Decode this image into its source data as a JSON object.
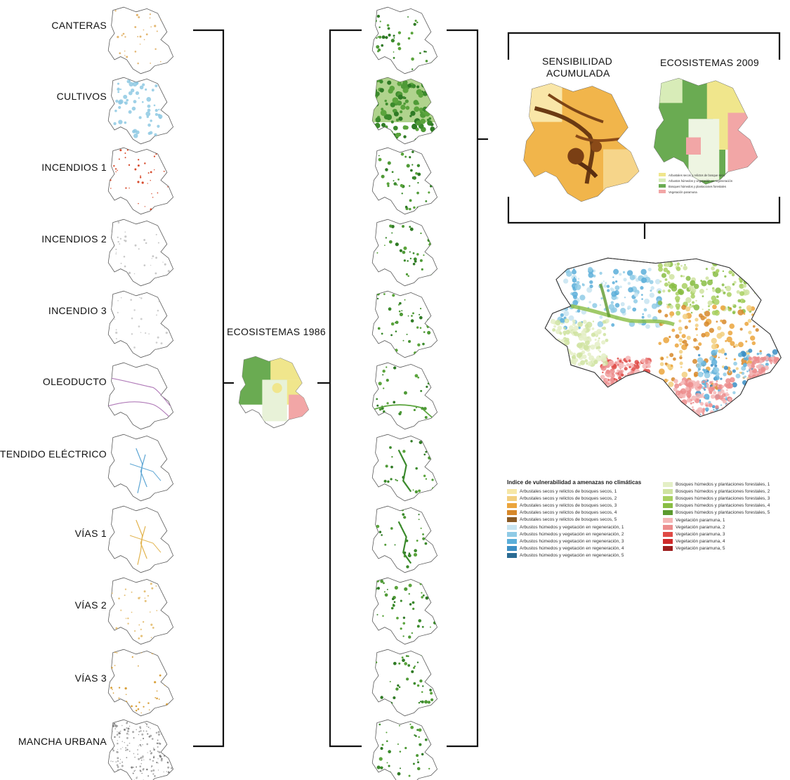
{
  "threat_layers": [
    {
      "label": "CANTERAS",
      "color": "#e3b772",
      "kind": "dots"
    },
    {
      "label": "CULTIVOS",
      "color": "#8ec9e3",
      "kind": "patches"
    },
    {
      "label": "INCENDIOS  1",
      "color": "#d64a2b",
      "kind": "dots"
    },
    {
      "label": "INCENDIOS 2",
      "color": "#c8c8c8",
      "kind": "dots"
    },
    {
      "label": "INCENDIO 3",
      "color": "#cfcfcf",
      "kind": "dots"
    },
    {
      "label": "OLEODUCTO",
      "color": "#b07ab8",
      "kind": "line"
    },
    {
      "label": "TENDIDO ELÉCTRICO",
      "color": "#5ea6d4",
      "kind": "lines"
    },
    {
      "label": "VÍAS 1",
      "color": "#e2b44f",
      "kind": "lines"
    },
    {
      "label": "VÍAS 2",
      "color": "#e6c27a",
      "kind": "dots"
    },
    {
      "label": "VÍAS 3",
      "color": "#d9a13c",
      "kind": "dots"
    },
    {
      "label": "MANCHA URBANA",
      "color": "#8a8a8a",
      "kind": "urban"
    }
  ],
  "center_label": "ECOSISTEMAS 1986",
  "top_right": {
    "sensibilidad_title_line1": "SENSIBILIDAD",
    "sensibilidad_title_line2": "ACUMULADA",
    "ecosistemas_title": "ECOSISTEMAS 2009"
  },
  "legend": {
    "title": "Indice de vulnerabilidad a amenazas no climáticas",
    "left_items": [
      {
        "label": "Arbustales secos y relictos de bosques secos, 1",
        "color": "#f6e7a6"
      },
      {
        "label": "Arbustales secos y relictos de bosques secos, 2",
        "color": "#f2cf7f"
      },
      {
        "label": "Arbustales secos y relictos de bosques secos, 3",
        "color": "#eba43c"
      },
      {
        "label": "Arbustales secos y relictos de bosques secos, 4",
        "color": "#d7882a"
      },
      {
        "label": "Arbustales secos y relictos de bosques secos, 5",
        "color": "#8a5a24"
      },
      {
        "label": "Arbustos húmedos y vegetación en regeneración, 1",
        "color": "#c7e4f1"
      },
      {
        "label": "Arbustos húmedos y vegetación en regeneración, 2",
        "color": "#8fcbe6"
      },
      {
        "label": "Arbustos húmedos y vegetación en regeneración, 3",
        "color": "#5aaed9"
      },
      {
        "label": "Arbustos húmedos y vegetación en regeneración, 4",
        "color": "#3b8ec4"
      },
      {
        "label": "Arbustos húmedos y vegetación en regeneración, 5",
        "color": "#2a6b93"
      }
    ],
    "right_items": [
      {
        "label": "Bosques húmedos y plantaciones forestales, 1",
        "color": "#e4efc6"
      },
      {
        "label": "Bosques húmedos y plantaciones forestales, 2",
        "color": "#cfe3a0"
      },
      {
        "label": "Bosques húmedos y plantaciones forestales, 3",
        "color": "#a8d060"
      },
      {
        "label": "Bosques húmedos y plantaciones forestales, 4",
        "color": "#88bd44"
      },
      {
        "label": "Bosques húmedos y plantaciones forestales, 5",
        "color": "#5c9a2e"
      },
      {
        "label": "Vegetación paramuna, 1",
        "color": "#f4b6b6"
      },
      {
        "label": "Vegetación paramuna, 2",
        "color": "#ec8c8c"
      },
      {
        "label": "Vegetación paramuna, 3",
        "color": "#df4a45"
      },
      {
        "label": "Vegetación paramuna, 4",
        "color": "#cf2a2a"
      },
      {
        "label": "Vegetación paramuna, 5",
        "color": "#9e1f1f"
      }
    ]
  },
  "eco2009_legend": [
    {
      "label": "Arbustales secos y relictos de bosque seco",
      "color": "#f0e68c"
    },
    {
      "label": "Arbustos húmedos y vegetación en regeneración",
      "color": "#d8ecb8"
    },
    {
      "label": "Bosques húmedos y plantaciones forestales",
      "color": "#6aab52"
    },
    {
      "label": "Vegetación paramuna",
      "color": "#f2a6a6"
    }
  ],
  "colors": {
    "outline": "#555555",
    "forest": "#6aab52",
    "dry": "#f0e68c",
    "paramo": "#f2a6a6",
    "bracket": "#111111"
  }
}
